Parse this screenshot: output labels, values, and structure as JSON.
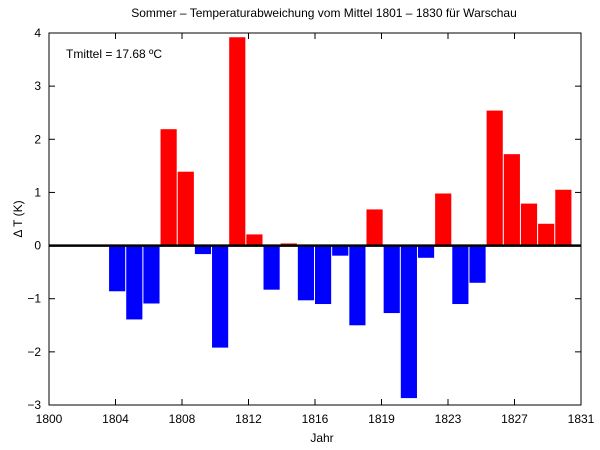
{
  "chart_data": {
    "type": "bar",
    "title": "Sommer – Temperaturabweichung vom Mittel 1801 – 1830 für Warschau",
    "xlabel": "Jahr",
    "ylabel": "Δ T (K)",
    "annotation": "Tmittel = 17.68 ºC",
    "xlim": [
      1800,
      1831
    ],
    "ylim": [
      -3,
      4
    ],
    "xticks": [
      {
        "value": 1800,
        "label": "1800"
      },
      {
        "value": 1803.875,
        "label": "1804"
      },
      {
        "value": 1807.75,
        "label": "1808"
      },
      {
        "value": 1811.625,
        "label": "1812"
      },
      {
        "value": 1815.5,
        "label": "1816"
      },
      {
        "value": 1819.375,
        "label": "1819"
      },
      {
        "value": 1823.25,
        "label": "1823"
      },
      {
        "value": 1827.125,
        "label": "1827"
      },
      {
        "value": 1831,
        "label": "1831"
      }
    ],
    "yticks": [
      -3,
      -2,
      -1,
      0,
      1,
      2,
      3,
      4
    ],
    "ytick_labels": [
      "−3",
      "−2",
      "−1",
      "0",
      "1",
      "2",
      "3",
      "4"
    ],
    "positive_color": "#ff0000",
    "negative_color": "#0000ff",
    "x": [
      1804,
      1805,
      1806,
      1807,
      1808,
      1809,
      1810,
      1811,
      1812,
      1813,
      1814,
      1815,
      1816,
      1817,
      1818,
      1819,
      1820,
      1821,
      1822,
      1823,
      1824,
      1825,
      1826,
      1827,
      1828,
      1829,
      1830
    ],
    "values": [
      -0.86,
      -1.39,
      -1.09,
      2.19,
      1.39,
      -0.16,
      -1.92,
      3.92,
      0.21,
      -0.83,
      0.04,
      -1.03,
      -1.1,
      -0.19,
      -1.5,
      0.68,
      -1.27,
      -2.87,
      -0.23,
      0.98,
      -1.1,
      -0.7,
      2.54,
      1.72,
      0.79,
      0.41,
      1.05
    ]
  }
}
